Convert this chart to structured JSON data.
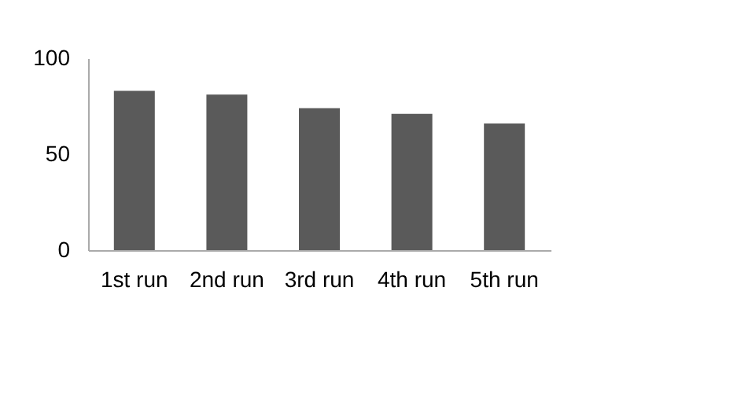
{
  "chart_data": {
    "type": "bar",
    "categories": [
      "1st run",
      "2nd run",
      "3rd run",
      "4th run",
      "5th run"
    ],
    "values": [
      83,
      81,
      74,
      71,
      66
    ],
    "color": "#5a5a5a",
    "ylim": [
      0,
      100
    ],
    "yticks": [
      0,
      50,
      100
    ],
    "grid": false
  }
}
